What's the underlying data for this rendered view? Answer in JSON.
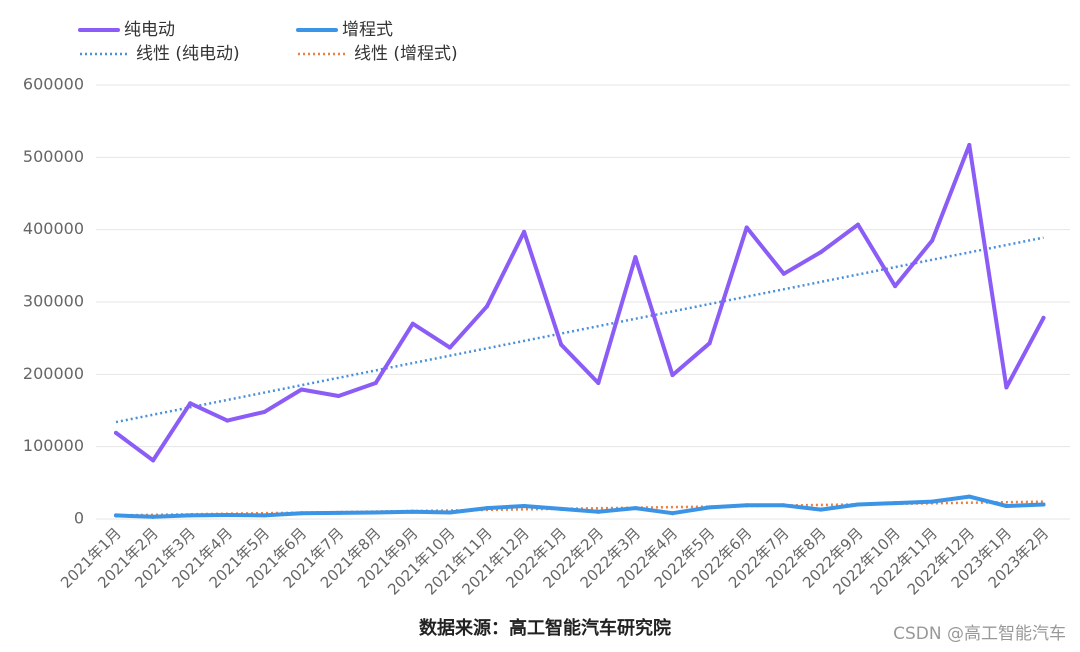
{
  "chart_data": {
    "type": "line",
    "categories": [
      "2021年1月",
      "2021年2月",
      "2021年3月",
      "2021年4月",
      "2021年5月",
      "2021年6月",
      "2021年7月",
      "2021年8月",
      "2021年9月",
      "2021年10月",
      "2021年11月",
      "2021年12月",
      "2022年1月",
      "2022年2月",
      "2022年3月",
      "2022年4月",
      "2022年5月",
      "2022年6月",
      "2022年7月",
      "2022年8月",
      "2022年9月",
      "2022年10月",
      "2022年11月",
      "2022年12月",
      "2023年1月",
      "2023年2月"
    ],
    "series": [
      {
        "name": "纯电动",
        "values": [
          119000,
          81000,
          160000,
          136000,
          148000,
          179000,
          170000,
          188000,
          270000,
          237000,
          294000,
          397000,
          241000,
          188000,
          362000,
          199000,
          243000,
          403000,
          339000,
          369000,
          407000,
          322000,
          385000,
          517000,
          182000,
          278000
        ],
        "color": "#8b5cf6"
      },
      {
        "name": "增程式",
        "values": [
          5000,
          3000,
          5000,
          5500,
          5000,
          8000,
          8500,
          9000,
          10000,
          9000,
          15000,
          18000,
          14000,
          10000,
          15000,
          8000,
          16000,
          19000,
          19000,
          13000,
          20000,
          22000,
          24000,
          31000,
          18000,
          20000
        ],
        "color": "#3b94e6"
      }
    ],
    "trendlines": [
      {
        "name": "线性 (纯电动)",
        "values": [
          134000,
          389000
        ],
        "color": "#4a90d9"
      },
      {
        "name": "线性 (增程式)",
        "values": [
          5000,
          24000
        ],
        "color": "#f07f3c"
      }
    ],
    "y_ticks": [
      "0",
      "100000",
      "200000",
      "300000",
      "400000",
      "500000",
      "600000"
    ],
    "ylim": [
      0,
      600000
    ],
    "grid": true,
    "legend": "top-left",
    "source": "数据来源：高工智能汽车研究院"
  },
  "watermark": "CSDN @高工智能汽车"
}
